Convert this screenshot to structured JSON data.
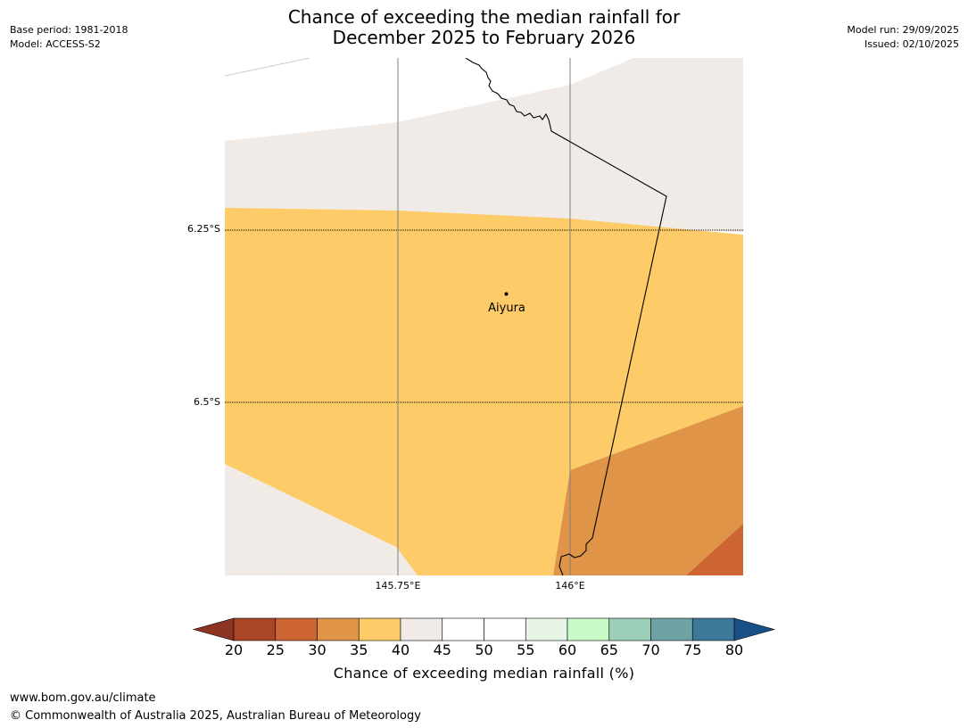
{
  "title": {
    "line1": "Chance of exceeding the median rainfall for",
    "line2": "December 2025 to February 2026"
  },
  "meta_left": {
    "base_period": "Base period: 1981-2018",
    "model": "Model: ACCESS-S2"
  },
  "meta_right": {
    "model_run": "Model run: 29/09/2025",
    "issued": "Issued: 02/10/2025"
  },
  "map": {
    "place_label": "Aiyura",
    "lat_labels": [
      "6.25°S",
      "6.5°S"
    ],
    "lon_labels": [
      "145.75°E",
      "146°E"
    ],
    "colors": {
      "band_40_45": "#f0ebe6",
      "band_35_40": "#fdcb67",
      "band_30_35": "#e09448",
      "band_25_30": "#cc6532",
      "border": "#000000",
      "gridline": "#808080"
    }
  },
  "colorbar": {
    "ticks": [
      "20",
      "25",
      "30",
      "35",
      "40",
      "45",
      "50",
      "55",
      "60",
      "65",
      "70",
      "75",
      "80"
    ],
    "colors": [
      "#aa4528",
      "#cc6532",
      "#e09448",
      "#fdcb67",
      "#f0ebe6",
      "#ffffff",
      "#ffffff",
      "#e8f5e6",
      "#c8fbc8",
      "#9ccfb8",
      "#6ea3a5",
      "#3e7899"
    ],
    "extend_low_color": "#8c3322",
    "extend_high_color": "#174f86",
    "label": "Chance of exceeding median rainfall (%)"
  },
  "footer": {
    "url": "www.bom.gov.au/climate",
    "copyright": "© Commonwealth of Australia 2025, Australian Bureau of Meteorology"
  }
}
